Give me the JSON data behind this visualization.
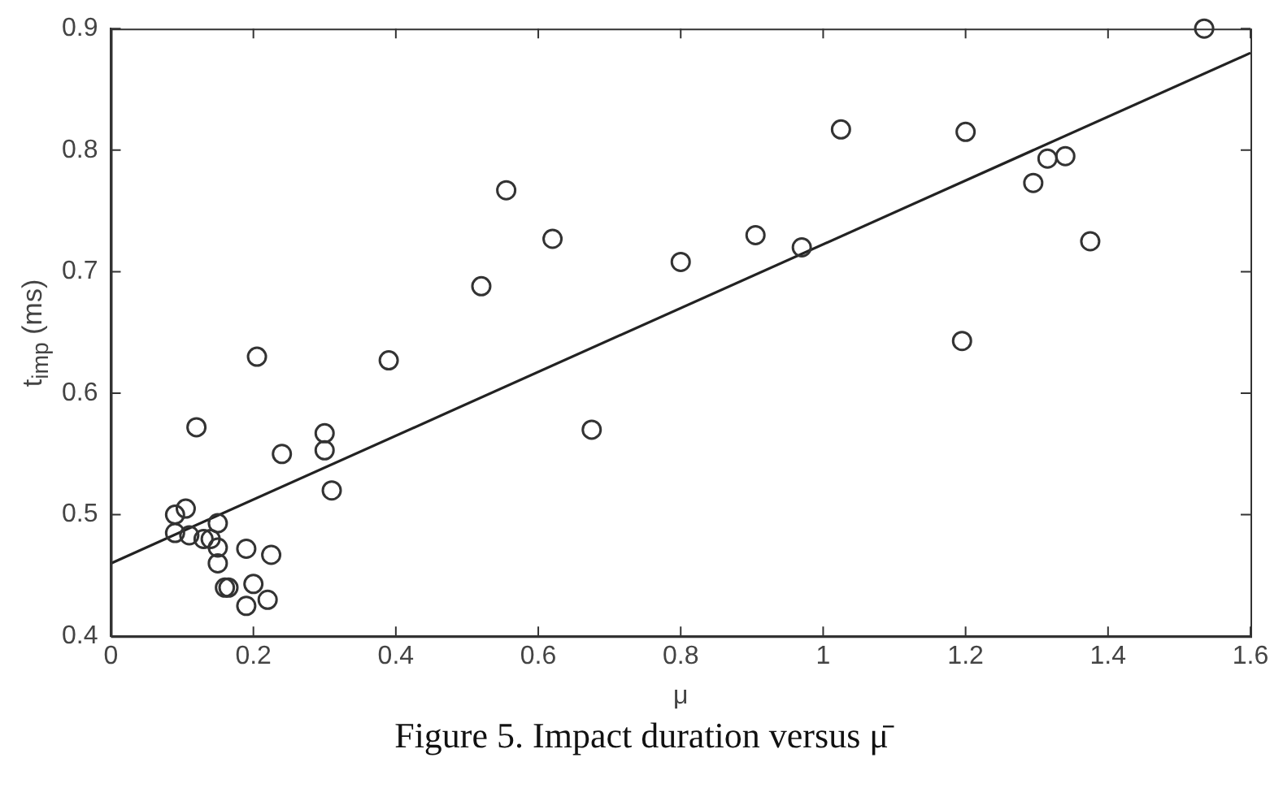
{
  "chart_data": {
    "type": "scatter",
    "xlabel": "μ",
    "ylabel": "t$_{imp}$ (ms)",
    "annotations": [
      "Figure 5. Impact duration versus μ̄"
    ],
    "xlim": [
      0,
      1.6
    ],
    "xticks": [
      0,
      0.2,
      0.4,
      0.6,
      0.8,
      1,
      1.2,
      1.4,
      1.6
    ],
    "ylim": [
      0.4,
      0.9
    ],
    "yticks": [
      0.4,
      0.5,
      0.6,
      0.7,
      0.8,
      0.9
    ],
    "grid": false,
    "legend": false,
    "marker": "circle",
    "series": [
      {
        "color": "#333333",
        "x": [
          0.09,
          0.09,
          0.105,
          0.11,
          0.12,
          0.13,
          0.14,
          0.15,
          0.15,
          0.15,
          0.16,
          0.165,
          0.19,
          0.19,
          0.2,
          0.205,
          0.22,
          0.225,
          0.24,
          0.3,
          0.3,
          0.31,
          0.39,
          0.52,
          0.555,
          0.62,
          0.675,
          0.8,
          0.905,
          0.97,
          1.025,
          1.195,
          1.2,
          1.295,
          1.315,
          1.34,
          1.375,
          1.535
        ],
        "values": [
          0.5,
          0.485,
          0.505,
          0.483,
          0.572,
          0.48,
          0.48,
          0.493,
          0.473,
          0.46,
          0.44,
          0.44,
          0.472,
          0.425,
          0.443,
          0.63,
          0.43,
          0.467,
          0.55,
          0.567,
          0.553,
          0.52,
          0.627,
          0.688,
          0.767,
          0.727,
          0.57,
          0.708,
          0.73,
          0.72,
          0.817,
          0.643,
          0.815,
          0.773,
          0.793,
          0.795,
          0.725,
          0.9
        ]
      },
      {
        "type": "line",
        "color": "#222222",
        "x": [
          0,
          1.6
        ],
        "values": [
          0.46,
          0.88
        ],
        "marker": "none",
        "line_style": "solid"
      }
    ]
  }
}
